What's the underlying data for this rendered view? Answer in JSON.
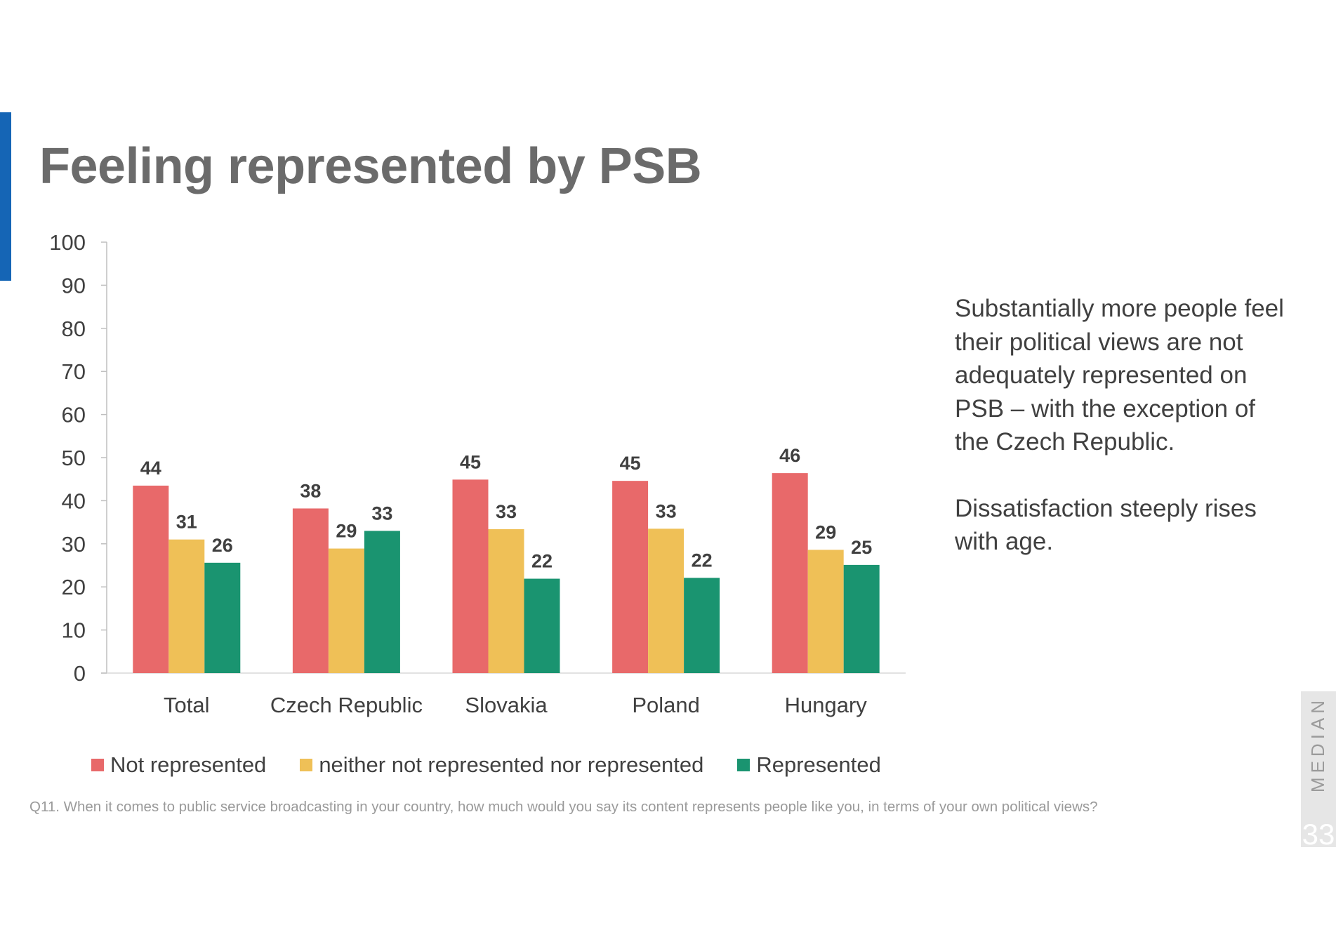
{
  "slide": {
    "title": "Feeling represented by PSB",
    "notes": [
      "Substantially more people feel their political views are not adequately represented on PSB – with the exception of the Czech Republic.",
      "Dissatisfaction steeply rises with age."
    ],
    "question": "Q11. When it comes to public service broadcasting in your country, how much would you say its content represents people like you, in terms of your own political views?",
    "brand": "MEDIAN",
    "page_number": "33"
  },
  "colors": {
    "accent": "#1565b5",
    "not_represented": "#e8696a",
    "neither": "#efc057",
    "represented": "#1a9470"
  },
  "chart_data": {
    "type": "bar",
    "title": "",
    "xlabel": "",
    "ylabel": "",
    "categories": [
      "Total",
      "Czech Republic",
      "Slovakia",
      "Poland",
      "Hungary"
    ],
    "series": [
      {
        "name": "Not represented",
        "color": "#e8696a",
        "values": [
          43.5,
          38.2,
          44.9,
          44.6,
          46.4
        ],
        "labels": [
          "44",
          "38",
          "45",
          "45",
          "46"
        ]
      },
      {
        "name": "neither not represented nor represented",
        "color": "#efc057",
        "values": [
          31.0,
          28.9,
          33.4,
          33.5,
          28.6
        ],
        "labels": [
          "31",
          "29",
          "33",
          "33",
          "29"
        ]
      },
      {
        "name": "Represented",
        "color": "#1a9470",
        "values": [
          25.6,
          33.0,
          21.9,
          22.1,
          25.1
        ],
        "labels": [
          "26",
          "33",
          "22",
          "22",
          "25"
        ]
      }
    ],
    "ylim": [
      0,
      100
    ],
    "yticks": [
      0,
      10,
      20,
      30,
      40,
      50,
      60,
      70,
      80,
      90,
      100
    ],
    "grid": false,
    "legend": "bottom"
  }
}
